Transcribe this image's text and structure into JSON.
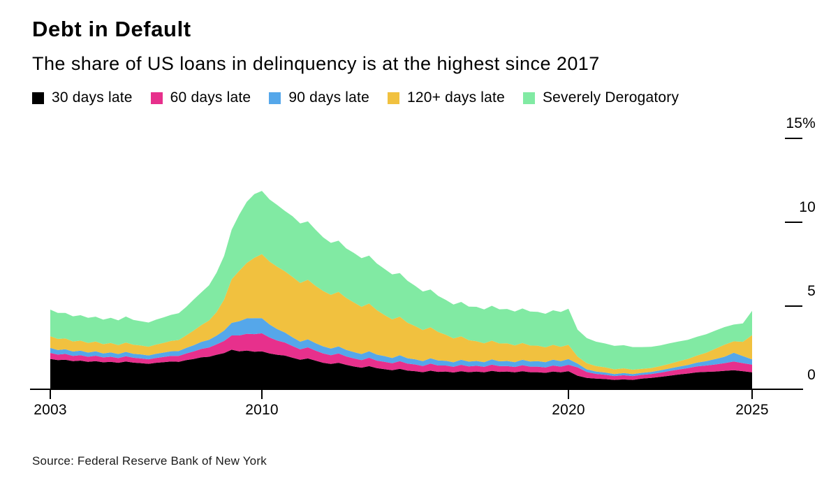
{
  "header": {
    "title": "Debt in Default",
    "subtitle": "The share of US loans in delinquency is at the highest since 2017"
  },
  "source": {
    "text": "Source: Federal Reserve Bank of New York"
  },
  "chart_data": {
    "type": "area",
    "stacked": true,
    "title": "Debt in Default",
    "subtitle": "The share of US loans in delinquency is at the highest since 2017",
    "unit": "%",
    "x_start": 2003.0,
    "x_step": 0.25,
    "xlim": [
      2003,
      2025
    ],
    "ylim": [
      0,
      15
    ],
    "grid": false,
    "legend_position": "top",
    "x_ticks": [
      {
        "label": "2003",
        "value": 2003
      },
      {
        "label": "2010",
        "value": 2010
      },
      {
        "label": "2020",
        "value": 2020
      },
      {
        "label": "2025",
        "value": 2025
      }
    ],
    "y_ticks": [
      {
        "label": "15%",
        "value": 15
      },
      {
        "label": "10",
        "value": 10
      },
      {
        "label": "5",
        "value": 5
      },
      {
        "label": "0",
        "value": 0
      }
    ],
    "series": [
      {
        "name": "30 days late",
        "color": "#000000",
        "values": [
          1.85,
          1.78,
          1.8,
          1.72,
          1.75,
          1.68,
          1.72,
          1.65,
          1.68,
          1.62,
          1.7,
          1.63,
          1.6,
          1.56,
          1.62,
          1.66,
          1.7,
          1.68,
          1.78,
          1.85,
          1.95,
          1.98,
          2.1,
          2.2,
          2.4,
          2.3,
          2.35,
          2.28,
          2.3,
          2.18,
          2.1,
          2.05,
          1.92,
          1.8,
          1.88,
          1.75,
          1.62,
          1.55,
          1.62,
          1.5,
          1.4,
          1.33,
          1.42,
          1.3,
          1.24,
          1.18,
          1.26,
          1.16,
          1.12,
          1.06,
          1.15,
          1.08,
          1.1,
          1.04,
          1.12,
          1.06,
          1.1,
          1.05,
          1.14,
          1.08,
          1.1,
          1.05,
          1.12,
          1.06,
          1.06,
          1.02,
          1.1,
          1.05,
          1.12,
          0.85,
          0.72,
          0.68,
          0.65,
          0.6,
          0.63,
          0.6,
          0.68,
          0.72,
          0.78,
          0.85,
          0.92,
          0.98,
          1.05,
          1.08,
          1.1,
          1.14,
          1.18,
          1.12,
          1.05
        ]
      },
      {
        "name": "60 days late",
        "color": "#e7308c",
        "values": [
          0.36,
          0.33,
          0.35,
          0.31,
          0.32,
          0.3,
          0.32,
          0.29,
          0.3,
          0.28,
          0.31,
          0.29,
          0.28,
          0.27,
          0.29,
          0.31,
          0.33,
          0.35,
          0.4,
          0.45,
          0.5,
          0.55,
          0.62,
          0.72,
          0.85,
          0.95,
          1.0,
          1.05,
          1.08,
          0.95,
          0.85,
          0.78,
          0.7,
          0.62,
          0.66,
          0.6,
          0.56,
          0.52,
          0.56,
          0.5,
          0.48,
          0.45,
          0.5,
          0.45,
          0.44,
          0.41,
          0.46,
          0.41,
          0.4,
          0.37,
          0.42,
          0.38,
          0.36,
          0.34,
          0.38,
          0.35,
          0.34,
          0.33,
          0.37,
          0.34,
          0.33,
          0.32,
          0.36,
          0.33,
          0.33,
          0.32,
          0.36,
          0.34,
          0.38,
          0.5,
          0.35,
          0.28,
          0.26,
          0.23,
          0.25,
          0.23,
          0.22,
          0.23,
          0.25,
          0.28,
          0.3,
          0.32,
          0.36,
          0.38,
          0.42,
          0.46,
          0.52,
          0.48,
          0.46
        ]
      },
      {
        "name": "90 days late",
        "color": "#55a7ea",
        "values": [
          0.3,
          0.27,
          0.28,
          0.26,
          0.27,
          0.25,
          0.27,
          0.24,
          0.26,
          0.24,
          0.26,
          0.24,
          0.24,
          0.23,
          0.25,
          0.26,
          0.28,
          0.29,
          0.33,
          0.37,
          0.42,
          0.46,
          0.52,
          0.62,
          0.75,
          0.85,
          0.92,
          0.95,
          0.9,
          0.78,
          0.68,
          0.6,
          0.52,
          0.46,
          0.48,
          0.44,
          0.42,
          0.4,
          0.42,
          0.39,
          0.38,
          0.36,
          0.39,
          0.36,
          0.34,
          0.32,
          0.35,
          0.32,
          0.31,
          0.29,
          0.32,
          0.3,
          0.28,
          0.27,
          0.3,
          0.28,
          0.29,
          0.28,
          0.31,
          0.29,
          0.3,
          0.29,
          0.32,
          0.31,
          0.33,
          0.32,
          0.35,
          0.33,
          0.34,
          0.22,
          0.16,
          0.14,
          0.13,
          0.12,
          0.13,
          0.12,
          0.12,
          0.13,
          0.14,
          0.15,
          0.17,
          0.19,
          0.22,
          0.26,
          0.32,
          0.38,
          0.52,
          0.42,
          0.31
        ]
      },
      {
        "name": "120+ days late",
        "color": "#f1c13f",
        "values": [
          0.7,
          0.66,
          0.64,
          0.6,
          0.6,
          0.57,
          0.58,
          0.55,
          0.56,
          0.53,
          0.56,
          0.54,
          0.53,
          0.52,
          0.55,
          0.58,
          0.62,
          0.66,
          0.75,
          0.88,
          1.0,
          1.15,
          1.4,
          1.85,
          2.6,
          3.0,
          3.3,
          3.6,
          3.82,
          3.75,
          3.72,
          3.65,
          3.6,
          3.5,
          3.55,
          3.42,
          3.3,
          3.2,
          3.25,
          3.1,
          2.96,
          2.82,
          2.85,
          2.65,
          2.45,
          2.3,
          2.3,
          2.12,
          1.98,
          1.85,
          1.85,
          1.7,
          1.55,
          1.42,
          1.4,
          1.28,
          1.18,
          1.12,
          1.12,
          1.06,
          1.05,
          1.0,
          1.0,
          0.95,
          0.92,
          0.88,
          0.88,
          0.85,
          0.85,
          0.42,
          0.36,
          0.33,
          0.31,
          0.28,
          0.28,
          0.26,
          0.24,
          0.23,
          0.25,
          0.28,
          0.32,
          0.36,
          0.42,
          0.5,
          0.62,
          0.72,
          0.68,
          0.85,
          1.45
        ]
      },
      {
        "name": "Severely Derogatory",
        "color": "#81eaa3",
        "values": [
          1.58,
          1.55,
          1.52,
          1.5,
          1.52,
          1.5,
          1.48,
          1.46,
          1.5,
          1.48,
          1.55,
          1.48,
          1.45,
          1.44,
          1.48,
          1.52,
          1.55,
          1.6,
          1.7,
          1.85,
          1.95,
          2.1,
          2.35,
          2.6,
          2.95,
          3.35,
          3.65,
          3.8,
          3.77,
          3.7,
          3.68,
          3.6,
          3.62,
          3.55,
          3.48,
          3.35,
          3.2,
          3.1,
          3.05,
          2.95,
          2.95,
          2.9,
          2.85,
          2.78,
          2.75,
          2.68,
          2.6,
          2.5,
          2.4,
          2.3,
          2.25,
          2.15,
          2.08,
          2.02,
          2.05,
          2.0,
          2.05,
          2.02,
          2.08,
          2.04,
          2.05,
          2.02,
          2.06,
          2.03,
          2.02,
          2.0,
          2.06,
          2.08,
          2.15,
          1.6,
          1.5,
          1.45,
          1.42,
          1.4,
          1.38,
          1.35,
          1.3,
          1.26,
          1.24,
          1.22,
          1.18,
          1.14,
          1.12,
          1.1,
          1.08,
          1.05,
          1.0,
          1.1,
          1.45
        ]
      }
    ]
  }
}
